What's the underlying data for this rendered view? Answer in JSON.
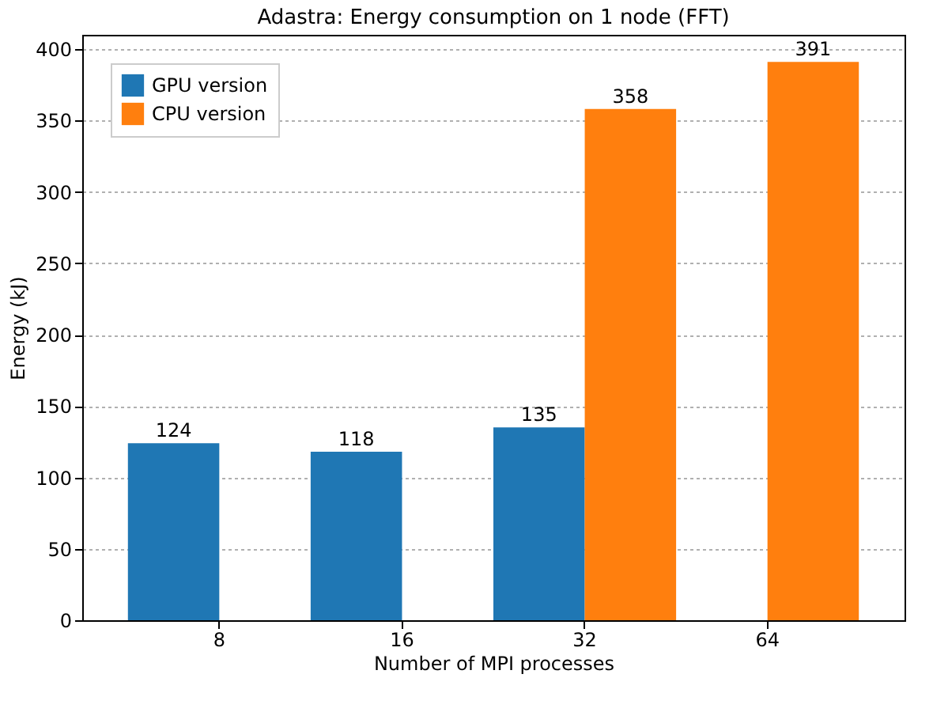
{
  "chart_data": {
    "type": "bar",
    "title": "Adastra: Energy consumption on 1 node (FFT)",
    "xlabel": "Number of MPI processes",
    "ylabel": "Energy (kJ)",
    "categories": [
      "8",
      "16",
      "32",
      "64"
    ],
    "series": [
      {
        "name": "GPU version",
        "color": "#1f77b4",
        "values": [
          124,
          118,
          135,
          null
        ]
      },
      {
        "name": "CPU version",
        "color": "#ff7f0e",
        "values": [
          null,
          null,
          358,
          391
        ]
      }
    ],
    "ylim": [
      0,
      410
    ],
    "yticks": [
      0,
      50,
      100,
      150,
      200,
      250,
      300,
      350,
      400
    ],
    "grid": "y",
    "legend": "top left",
    "data_labels": true
  }
}
